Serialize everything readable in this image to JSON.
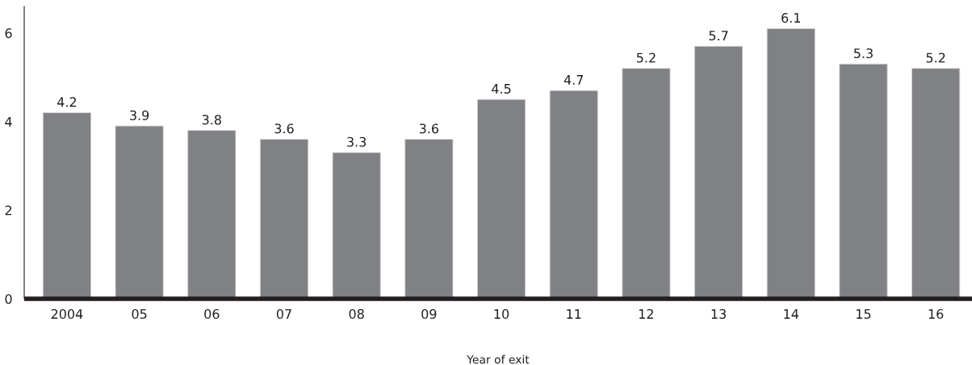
{
  "chart_data": {
    "type": "bar",
    "xlabel": "Year of exit",
    "categories": [
      "2004",
      "05",
      "06",
      "07",
      "08",
      "09",
      "10",
      "11",
      "12",
      "13",
      "14",
      "15",
      "16"
    ],
    "values": [
      4.2,
      3.9,
      3.8,
      3.6,
      3.3,
      3.6,
      4.5,
      4.7,
      5.2,
      5.7,
      6.1,
      5.3,
      5.2
    ],
    "color": "#808185",
    "ylim": [
      0,
      6.6
    ],
    "yticks": [
      0,
      2,
      4,
      6
    ],
    "data_labels": true
  }
}
